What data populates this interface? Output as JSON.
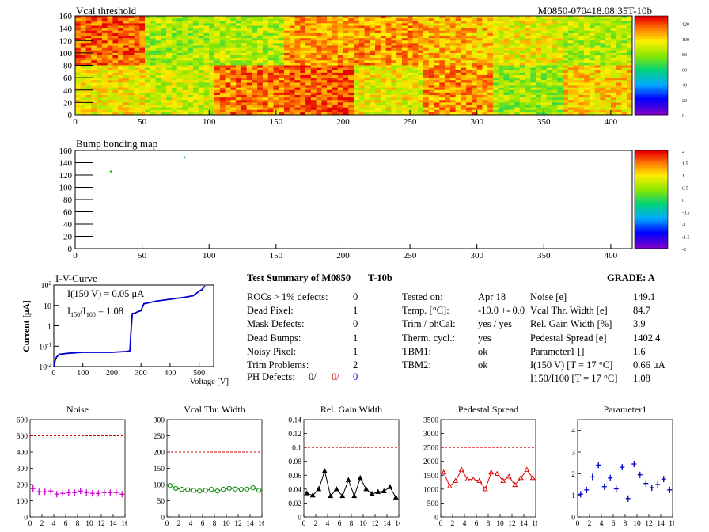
{
  "header": {
    "title": "Vcal threshold",
    "module_id": "M0850-070418.08:35T-10b"
  },
  "colors": {
    "plot_frame": "#000000",
    "series_blue": "#0000cc",
    "noise": "#cc00cc",
    "vcal_width": "#008800",
    "rel_gain": "#000000",
    "pedestal": "#dd0000",
    "param1": "#0000cc",
    "ref_line": "#cc0000"
  },
  "bump_map": {
    "title": "Bump bonding map"
  },
  "iv": {
    "title": "I-V-Curve",
    "ylabel": "Current [μA]",
    "xlabel": "Voltage [V]",
    "note1": "I(150 V) = 0.05 μA",
    "note2": "I150/I100 = 1.08"
  },
  "summary": {
    "heading": "Test Summary of M0850",
    "tag": "T-10b",
    "grade": "GRADE:  A",
    "defects": [
      {
        "label": "ROCs > 1% defects:",
        "value": "0"
      },
      {
        "label": "Dead Pixel:",
        "value": "1"
      },
      {
        "label": "Mask Defects:",
        "value": "0"
      },
      {
        "label": "Dead Bumps:",
        "value": "1"
      },
      {
        "label": "Noisy Pixel:",
        "value": "1"
      },
      {
        "label": "Trim Problems:",
        "value": "2"
      }
    ],
    "ph_label": "PH Defects:",
    "ph_values": [
      "0/",
      "0/",
      "0"
    ],
    "conditions": [
      {
        "label": "Tested on:",
        "value": "Apr 18"
      },
      {
        "label": "Temp. [°C]:",
        "value": "-10.0 +- 0.0"
      },
      {
        "label": "Trim / phCal:",
        "value": "yes / yes"
      },
      {
        "label": "Therm. cycl.:",
        "value": "yes"
      },
      {
        "label": "TBM1:",
        "value": "ok"
      },
      {
        "label": "TBM2:",
        "value": "ok"
      }
    ],
    "results": [
      {
        "label": "Noise [e]",
        "value": "149.1"
      },
      {
        "label": "Vcal Thr. Width [e]",
        "value": "84.7"
      },
      {
        "label": "Rel. Gain Width [%]",
        "value": "3.9"
      },
      {
        "label": "Pedestal Spread [e]",
        "value": "1402.4"
      },
      {
        "label": "Parameter1 []",
        "value": "1.6"
      },
      {
        "label": "I(150 V) [T = 17 °C]",
        "value": "0.66 μA"
      },
      {
        "label": "I150/I100  [T = 17 °C]",
        "value": "1.08"
      }
    ]
  },
  "chart_data": [
    {
      "type": "heatmap",
      "title": "Vcal threshold",
      "xlim": [
        0,
        416
      ],
      "ylim": [
        0,
        160
      ],
      "xticks": [
        "0",
        "50",
        "100",
        "150",
        "200",
        "250",
        "300",
        "350",
        "400"
      ],
      "yticks": [
        "0",
        "20",
        "40",
        "60",
        "80",
        "100",
        "120",
        "140",
        "160"
      ],
      "colorbar_ticks": [
        "0",
        "20",
        "40",
        "60",
        "80",
        "100",
        "120"
      ],
      "roc_top_mean": [
        118,
        82,
        84,
        108,
        110,
        104,
        94,
        84
      ],
      "roc_bottom_mean": [
        96,
        88,
        114,
        118,
        94,
        110,
        80,
        100
      ]
    },
    {
      "type": "heatmap",
      "title": "Bump bonding map",
      "xlim": [
        0,
        416
      ],
      "ylim": [
        0,
        160
      ],
      "xticks": [
        "0",
        "50",
        "100",
        "150",
        "200",
        "250",
        "300",
        "350",
        "400"
      ],
      "yticks": [
        "0",
        "20",
        "40",
        "60",
        "80",
        "100",
        "120",
        "140",
        "160"
      ],
      "colorbar_ticks": [
        "2",
        "1.5",
        "1",
        "0.5",
        "0",
        "-0.5",
        "-1",
        "-1.5",
        "-2"
      ],
      "points": [
        {
          "x": 26,
          "y": 127
        },
        {
          "x": 81,
          "y": 150
        }
      ]
    },
    {
      "type": "line",
      "title": "I-V-Curve",
      "xlabel": "Voltage [V]",
      "ylabel": "Current [μA]",
      "xlim": [
        0,
        550
      ],
      "ylim": [
        0.01,
        100
      ],
      "yscale": "log",
      "xticks": [
        "0",
        "100",
        "200",
        "300",
        "400",
        "500"
      ],
      "yticks": [
        "10-2",
        "10-1",
        "1",
        "10",
        "102"
      ],
      "x": [
        0,
        5,
        10,
        20,
        50,
        100,
        150,
        200,
        250,
        262,
        265,
        270,
        280,
        290,
        300,
        310,
        350,
        400,
        450,
        480,
        500,
        510,
        520
      ],
      "y": [
        0.01,
        0.02,
        0.03,
        0.04,
        0.045,
        0.05,
        0.05,
        0.05,
        0.055,
        0.06,
        0.4,
        4,
        4.2,
        5,
        5.5,
        12,
        16,
        20,
        25,
        30,
        50,
        60,
        90
      ]
    },
    {
      "type": "scatter",
      "title": "Noise",
      "xlim": [
        0,
        16
      ],
      "ylim": [
        0,
        600
      ],
      "ref": 500,
      "xticks": [
        "0",
        "2",
        "4",
        "6",
        "8",
        "10",
        "12",
        "14",
        "16"
      ],
      "yticks": [
        "0",
        "100",
        "200",
        "300",
        "400",
        "500",
        "600"
      ],
      "x": [
        0,
        1,
        2,
        3,
        4,
        5,
        6,
        7,
        8,
        9,
        10,
        11,
        12,
        13,
        14,
        15
      ],
      "values": [
        175,
        155,
        155,
        160,
        140,
        145,
        150,
        150,
        160,
        150,
        145,
        145,
        150,
        150,
        150,
        140
      ]
    },
    {
      "type": "line",
      "title": "Vcal Thr. Width",
      "xlim": [
        0,
        16
      ],
      "ylim": [
        0,
        300
      ],
      "ref": 200,
      "xticks": [
        "0",
        "2",
        "4",
        "6",
        "8",
        "10",
        "12",
        "14",
        "16"
      ],
      "yticks": [
        "0",
        "50",
        "100",
        "150",
        "200",
        "250",
        "300"
      ],
      "x": [
        0,
        1,
        2,
        3,
        4,
        5,
        6,
        7,
        8,
        9,
        10,
        11,
        12,
        13,
        14,
        15
      ],
      "values": [
        97,
        88,
        85,
        84,
        82,
        80,
        82,
        85,
        80,
        85,
        88,
        86,
        85,
        86,
        90,
        82
      ]
    },
    {
      "type": "line",
      "title": "Rel. Gain Width",
      "xlim": [
        0,
        16
      ],
      "ylim": [
        0,
        0.14
      ],
      "ref": 0.1,
      "xticks": [
        "0",
        "2",
        "4",
        "6",
        "8",
        "10",
        "12",
        "14",
        "16"
      ],
      "yticks": [
        "0",
        "0.02",
        "0.04",
        "0.06",
        "0.08",
        "0.1",
        "0.12",
        "0.14"
      ],
      "x": [
        0,
        1,
        2,
        3,
        4,
        5,
        6,
        7,
        8,
        9,
        10,
        11,
        12,
        13,
        14,
        15
      ],
      "values": [
        0.034,
        0.031,
        0.04,
        0.066,
        0.03,
        0.04,
        0.03,
        0.053,
        0.03,
        0.056,
        0.04,
        0.033,
        0.036,
        0.037,
        0.043,
        0.028
      ]
    },
    {
      "type": "line",
      "title": "Pedestal Spread",
      "xlim": [
        0,
        16
      ],
      "ylim": [
        0,
        3500
      ],
      "ref": 2500,
      "xticks": [
        "0",
        "2",
        "4",
        "6",
        "8",
        "10",
        "12",
        "14",
        "16"
      ],
      "yticks": [
        "0",
        "500",
        "1000",
        "1500",
        "2000",
        "2500",
        "3000",
        "3500"
      ],
      "x": [
        0,
        1,
        2,
        3,
        4,
        5,
        6,
        7,
        8,
        9,
        10,
        11,
        12,
        13,
        14,
        15
      ],
      "values": [
        1600,
        1100,
        1300,
        1700,
        1350,
        1350,
        1300,
        1000,
        1600,
        1550,
        1300,
        1450,
        1150,
        1400,
        1700,
        1400
      ]
    },
    {
      "type": "scatter",
      "title": "Parameter1",
      "xlim": [
        0,
        16
      ],
      "ylim": [
        0,
        4.5
      ],
      "xticks": [
        "0",
        "2",
        "4",
        "6",
        "8",
        "10",
        "12",
        "14",
        "16"
      ],
      "yticks": [
        "0",
        "1",
        "2",
        "3",
        "4"
      ],
      "x": [
        0,
        1,
        2,
        3,
        4,
        5,
        6,
        7,
        8,
        9,
        10,
        11,
        12,
        13,
        14,
        15
      ],
      "values": [
        1.05,
        1.25,
        1.85,
        2.4,
        1.4,
        1.8,
        1.3,
        2.3,
        0.85,
        2.45,
        1.95,
        1.55,
        1.35,
        1.5,
        1.75,
        1.25
      ]
    }
  ]
}
